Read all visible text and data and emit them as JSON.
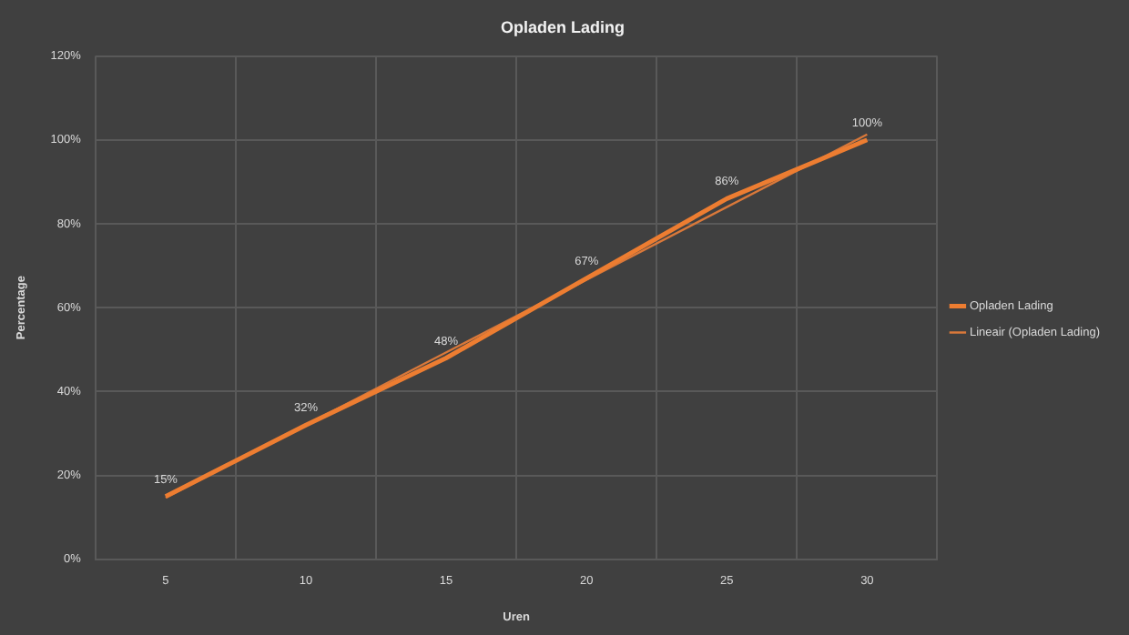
{
  "chart_data": {
    "type": "line",
    "title": "Opladen Lading",
    "xlabel": "Uren",
    "ylabel": "Percentage",
    "categories": [
      "5",
      "10",
      "15",
      "20",
      "25",
      "30"
    ],
    "series": [
      {
        "name": "Opladen Lading",
        "color": "#ed7d31",
        "values": [
          15,
          32,
          48,
          67,
          86,
          100
        ],
        "value_labels": [
          "15%",
          "32%",
          "48%",
          "67%",
          "86%",
          "100%"
        ]
      },
      {
        "name": "Lineair (Opladen Lading)",
        "type": "line",
        "color": "#d9783a",
        "x": [
          "5",
          "30"
        ],
        "values": [
          14.7,
          101.3
        ]
      }
    ],
    "ylim": [
      0,
      120
    ],
    "yticks": [
      {
        "value": 0,
        "label": "0%"
      },
      {
        "value": 20,
        "label": "20%"
      },
      {
        "value": 40,
        "label": "40%"
      },
      {
        "value": 60,
        "label": "60%"
      },
      {
        "value": 80,
        "label": "80%"
      },
      {
        "value": 100,
        "label": "100%"
      },
      {
        "value": 120,
        "label": "120%"
      }
    ],
    "grid": true,
    "legend": "right",
    "marker": "none",
    "line_style": "solid"
  }
}
